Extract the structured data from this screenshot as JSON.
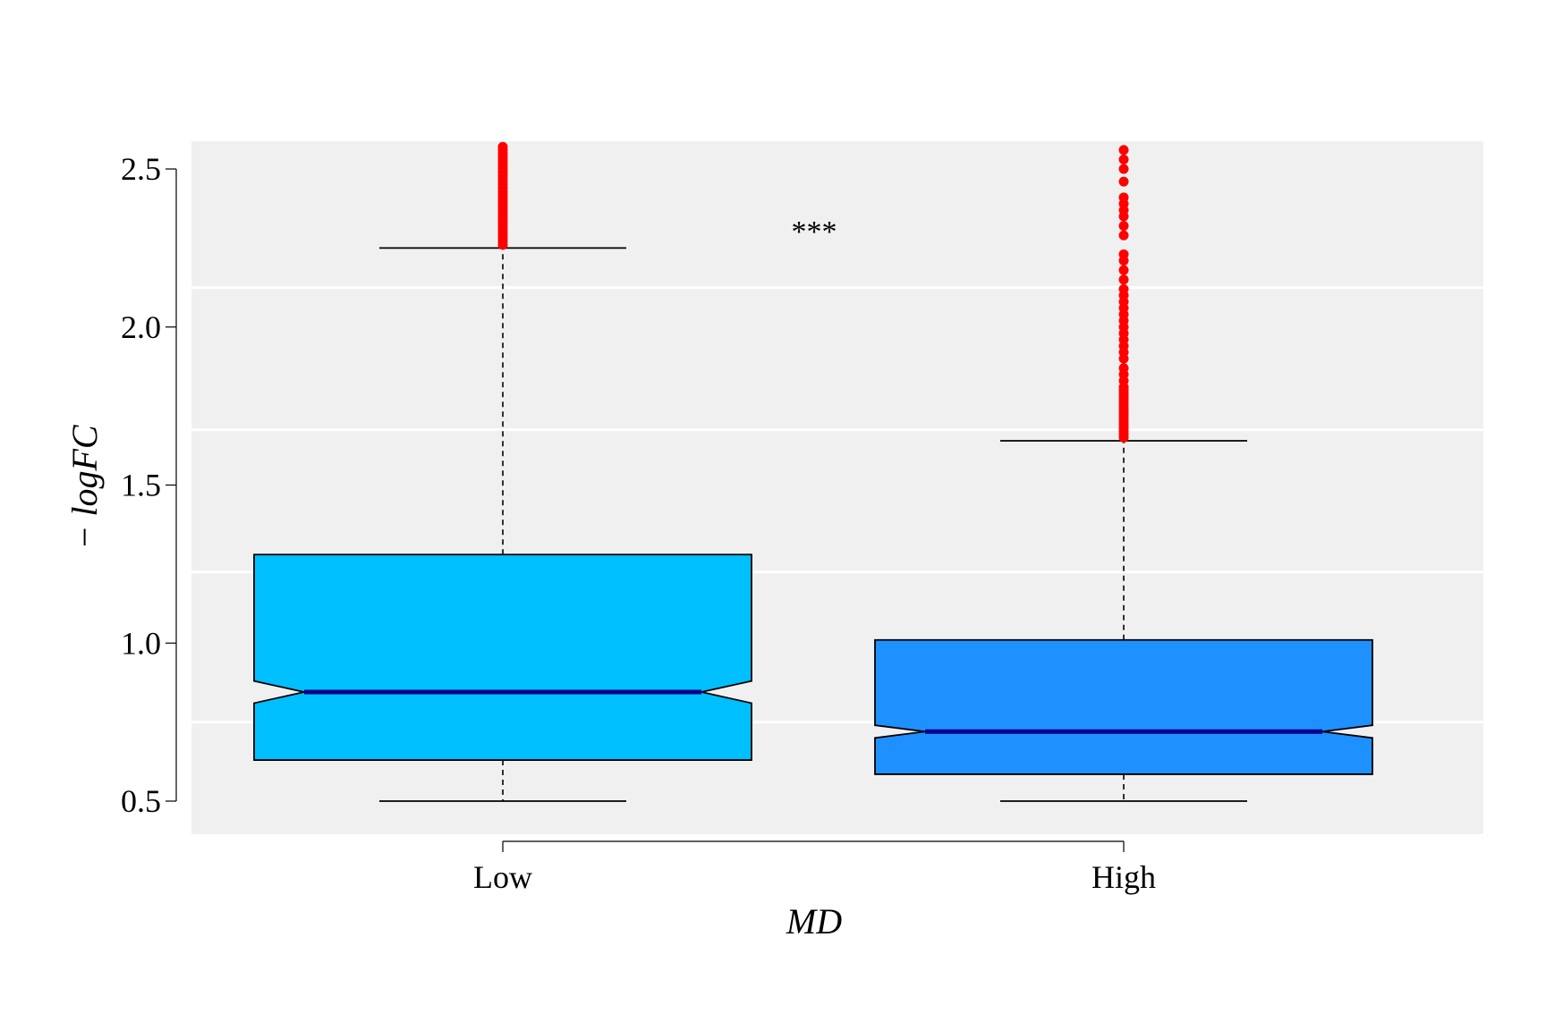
{
  "chart_data": {
    "type": "boxplot",
    "notched": true,
    "xlabel": "MD",
    "ylabel": "− logFC",
    "yticks": [
      "0.5",
      "1.0",
      "1.5",
      "2.0",
      "2.5"
    ],
    "ytick_values": [
      0.5,
      1.0,
      1.5,
      2.0,
      2.5
    ],
    "ylim": [
      0.4,
      2.58
    ],
    "annotation": "***",
    "colors": {
      "panel_bg": "#f0f0f0",
      "gridline": "#ffffff",
      "median": "#00008b",
      "outlier": "#ff0000"
    },
    "groups": [
      {
        "label": "Low",
        "fill": "#00bfff",
        "whisker_low": 0.5,
        "q1": 0.63,
        "median": 0.845,
        "q3": 1.28,
        "whisker_high": 2.25,
        "notch_low": 0.81,
        "notch_high": 0.88,
        "outliers": [
          2.26,
          2.27,
          2.28,
          2.29,
          2.3,
          2.31,
          2.32,
          2.33,
          2.34,
          2.35,
          2.36,
          2.37,
          2.38,
          2.39,
          2.4,
          2.41,
          2.42,
          2.43,
          2.44,
          2.45,
          2.46,
          2.47,
          2.48,
          2.49,
          2.5,
          2.51,
          2.52,
          2.53,
          2.54,
          2.55,
          2.56,
          2.57
        ]
      },
      {
        "label": "High",
        "fill": "#1e90ff",
        "whisker_low": 0.5,
        "q1": 0.585,
        "median": 0.72,
        "q3": 1.01,
        "whisker_high": 1.64,
        "notch_low": 0.7,
        "notch_high": 0.74,
        "outliers": [
          1.65,
          1.66,
          1.67,
          1.68,
          1.69,
          1.7,
          1.71,
          1.72,
          1.73,
          1.74,
          1.75,
          1.76,
          1.77,
          1.78,
          1.79,
          1.8,
          1.81,
          1.83,
          1.85,
          1.87,
          1.9,
          1.92,
          1.94,
          1.96,
          1.98,
          2.0,
          2.02,
          2.04,
          2.06,
          2.08,
          2.1,
          2.12,
          2.15,
          2.18,
          2.21,
          2.23,
          2.29,
          2.32,
          2.35,
          2.37,
          2.39,
          2.41,
          2.46,
          2.5,
          2.53,
          2.56
        ]
      }
    ]
  }
}
